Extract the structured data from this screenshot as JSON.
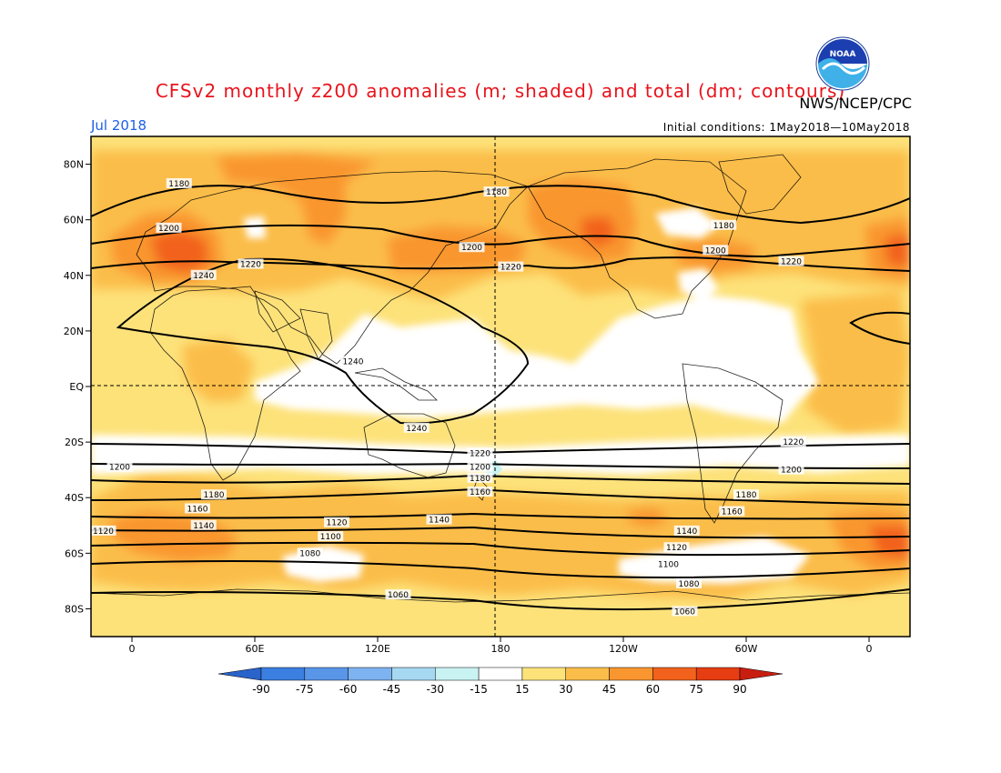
{
  "title": "CFSv2 monthly z200 anomalies (m; shaded) and total (dm; contours)",
  "org": "NWS/NCEP/CPC",
  "month": "Jul 2018",
  "initial_conditions": "Initial conditions: 1May2018—10May2018",
  "logo": {
    "text": "NOAA",
    "icon": "noaa-logo-icon"
  },
  "colors": {
    "title": "#e8131b",
    "month": "#1d5ee8"
  },
  "chart_data": {
    "type": "heatmap",
    "lon_range": [
      -20,
      380
    ],
    "lat_range": [
      -90,
      90
    ],
    "x_ticks": [
      "0",
      "60E",
      "120E",
      "180",
      "120W",
      "60W",
      "0"
    ],
    "x_tick_values": [
      0,
      60,
      120,
      180,
      240,
      300,
      360
    ],
    "y_ticks": [
      "80N",
      "60N",
      "40N",
      "20N",
      "EQ",
      "20S",
      "40S",
      "60S",
      "80S"
    ],
    "y_tick_values": [
      80,
      60,
      40,
      20,
      0,
      -20,
      -40,
      -60,
      -80
    ],
    "colorbar": {
      "labels": [
        "-90",
        "-75",
        "-60",
        "-45",
        "-30",
        "-15",
        "15",
        "30",
        "45",
        "60",
        "75",
        "90"
      ],
      "colors": [
        "#2a63c9",
        "#3b7fe0",
        "#5996e8",
        "#7db3f0",
        "#a6d8f2",
        "#c9f2f2",
        "#ffffff",
        "#fde27a",
        "#fbbd4a",
        "#f9962f",
        "#f2621c",
        "#e63d12",
        "#c81e10"
      ]
    },
    "contour_labels": [
      {
        "text": "1180",
        "lon": 23,
        "lat": 73
      },
      {
        "text": "1180",
        "lon": 178,
        "lat": 70
      },
      {
        "text": "1180",
        "lon": 289,
        "lat": 58
      },
      {
        "text": "1200",
        "lon": 18,
        "lat": 57
      },
      {
        "text": "1200",
        "lon": 166,
        "lat": 50
      },
      {
        "text": "1200",
        "lon": 285,
        "lat": 49
      },
      {
        "text": "1220",
        "lon": 58,
        "lat": 44
      },
      {
        "text": "1220",
        "lon": 185,
        "lat": 43
      },
      {
        "text": "1220",
        "lon": 322,
        "lat": 45
      },
      {
        "text": "1240",
        "lon": 35,
        "lat": 40
      },
      {
        "text": "1240",
        "lon": 108,
        "lat": 9
      },
      {
        "text": "1240",
        "lon": 139,
        "lat": -15
      },
      {
        "text": "1220",
        "lon": 170,
        "lat": -24
      },
      {
        "text": "1220",
        "lon": 323,
        "lat": -20
      },
      {
        "text": "1200",
        "lon": -6,
        "lat": -29
      },
      {
        "text": "1200",
        "lon": 170,
        "lat": -29
      },
      {
        "text": "1200",
        "lon": 322,
        "lat": -30
      },
      {
        "text": "1180",
        "lon": 170,
        "lat": -33
      },
      {
        "text": "1160",
        "lon": 170,
        "lat": -38
      },
      {
        "text": "1180",
        "lon": 40,
        "lat": -39
      },
      {
        "text": "1180",
        "lon": 300,
        "lat": -39
      },
      {
        "text": "1160",
        "lon": 32,
        "lat": -44
      },
      {
        "text": "1160",
        "lon": 293,
        "lat": -45
      },
      {
        "text": "1140",
        "lon": 150,
        "lat": -48
      },
      {
        "text": "1140",
        "lon": 35,
        "lat": -50
      },
      {
        "text": "1140",
        "lon": 271,
        "lat": -52
      },
      {
        "text": "1120",
        "lon": -14,
        "lat": -52
      },
      {
        "text": "1120",
        "lon": 100,
        "lat": -49
      },
      {
        "text": "1120",
        "lon": 266,
        "lat": -58
      },
      {
        "text": "1100",
        "lon": 97,
        "lat": -54
      },
      {
        "text": "1100",
        "lon": 262,
        "lat": -64
      },
      {
        "text": "1080",
        "lon": 87,
        "lat": -60
      },
      {
        "text": "1080",
        "lon": 272,
        "lat": -71
      },
      {
        "text": "1060",
        "lon": 130,
        "lat": -75
      },
      {
        "text": "1060",
        "lon": 270,
        "lat": -81
      }
    ]
  }
}
